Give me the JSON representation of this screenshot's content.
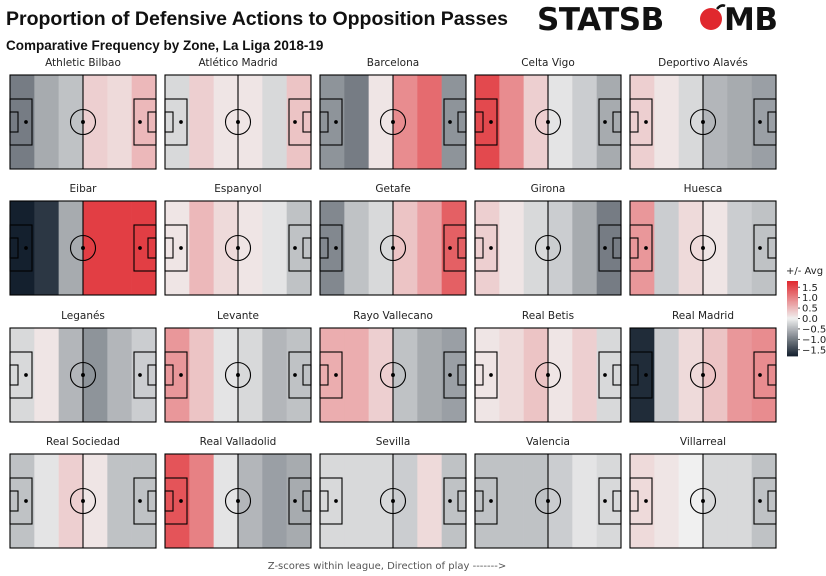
{
  "header": {
    "title": "Proportion of Defensive Actions to Opposition Passes",
    "subtitle": "Comparative Frequency by Zone, La Liga 2018-19"
  },
  "logo": {
    "text_left": "STATSB",
    "text_right": "MB",
    "color": "#e0282e"
  },
  "footer": {
    "caption": "Z-scores within league, Direction of play ------->"
  },
  "legend": {
    "title": "+/- Avg",
    "ticks": [
      "1.5",
      "1.0",
      "0.5",
      "0.0",
      "−0.5",
      "−1.0",
      "−1.5"
    ],
    "tick_values": [
      1.5,
      1.0,
      0.5,
      0.0,
      -0.5,
      -1.0,
      -1.5
    ],
    "range": [
      -1.8,
      1.8
    ],
    "colors": {
      "high": "#e0282e",
      "mid": "#f0f0f0",
      "low": "#14202e"
    }
  },
  "chart_data": {
    "type": "heatmap",
    "title": "Proportion of Defensive Actions to Opposition Passes",
    "subtitle": "Comparative Frequency by Zone, La Liga 2018-19",
    "xlabel": "Z-scores within league, Direction of play ------->",
    "zones": 6,
    "value_range": [
      -1.8,
      1.8
    ],
    "teams": [
      {
        "name": "Athletic Bilbao",
        "values": [
          -1.0,
          -0.6,
          -0.4,
          0.3,
          0.2,
          0.5
        ]
      },
      {
        "name": "Atlético Madrid",
        "values": [
          -0.2,
          0.3,
          0.1,
          0.1,
          -0.2,
          0.4
        ]
      },
      {
        "name": "Barcelona",
        "values": [
          -0.8,
          -1.0,
          0.1,
          0.9,
          1.2,
          -0.8
        ]
      },
      {
        "name": "Celta Vigo",
        "values": [
          1.5,
          0.9,
          0.3,
          -0.1,
          -0.3,
          -0.6
        ]
      },
      {
        "name": "Deportivo Alavés",
        "values": [
          0.3,
          0.1,
          -0.2,
          -0.5,
          -0.6,
          -0.7
        ]
      },
      {
        "name": "Eibar",
        "values": [
          -1.8,
          -1.6,
          -0.6,
          1.6,
          1.6,
          1.6
        ]
      },
      {
        "name": "Espanyol",
        "values": [
          0.1,
          0.5,
          0.2,
          0.1,
          -0.1,
          -0.4
        ]
      },
      {
        "name": "Getafe",
        "values": [
          -0.9,
          -0.4,
          -0.2,
          0.4,
          0.7,
          1.3
        ]
      },
      {
        "name": "Girona",
        "values": [
          0.3,
          0.1,
          -0.2,
          -0.3,
          -0.6,
          -1.0
        ]
      },
      {
        "name": "Huesca",
        "values": [
          0.8,
          -0.3,
          0.2,
          0.1,
          -0.3,
          -0.4
        ]
      },
      {
        "name": "Leganés",
        "values": [
          -0.2,
          0.1,
          -0.5,
          -0.8,
          -0.5,
          -0.3
        ]
      },
      {
        "name": "Levante",
        "values": [
          0.8,
          0.4,
          -0.1,
          -0.2,
          -0.5,
          -0.4
        ]
      },
      {
        "name": "Rayo Vallecano",
        "values": [
          0.6,
          0.6,
          0.3,
          -0.4,
          -0.6,
          -0.7
        ]
      },
      {
        "name": "Real Betis",
        "values": [
          0.1,
          0.2,
          0.4,
          0.1,
          0.3,
          -0.2
        ]
      },
      {
        "name": "Real Madrid",
        "values": [
          -1.7,
          -0.3,
          0.2,
          0.4,
          0.8,
          0.9
        ]
      },
      {
        "name": "Real Sociedad",
        "values": [
          -0.4,
          -0.1,
          0.3,
          0.1,
          -0.4,
          -0.4
        ]
      },
      {
        "name": "Real Valladolid",
        "values": [
          1.4,
          1.0,
          -0.1,
          -0.5,
          -0.7,
          -0.6
        ]
      },
      {
        "name": "Sevilla",
        "values": [
          -0.2,
          -0.2,
          -0.2,
          -0.3,
          0.2,
          -0.4
        ]
      },
      {
        "name": "Valencia",
        "values": [
          -0.4,
          -0.4,
          -0.4,
          -0.3,
          -0.1,
          -0.2
        ]
      },
      {
        "name": "Villarreal",
        "values": [
          0.2,
          0.1,
          0.0,
          -0.2,
          -0.2,
          -0.4
        ]
      }
    ]
  }
}
